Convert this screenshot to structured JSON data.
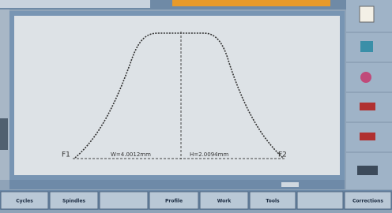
{
  "dimensions": {
    "left_label": "F1",
    "width": "W=4.0012mm",
    "height": "H=2.0094mm",
    "right_label": "F2"
  },
  "softkeys": [
    "Cycles",
    "Spindles",
    "Profile",
    "Work",
    "Tools",
    "Corrections"
  ]
}
